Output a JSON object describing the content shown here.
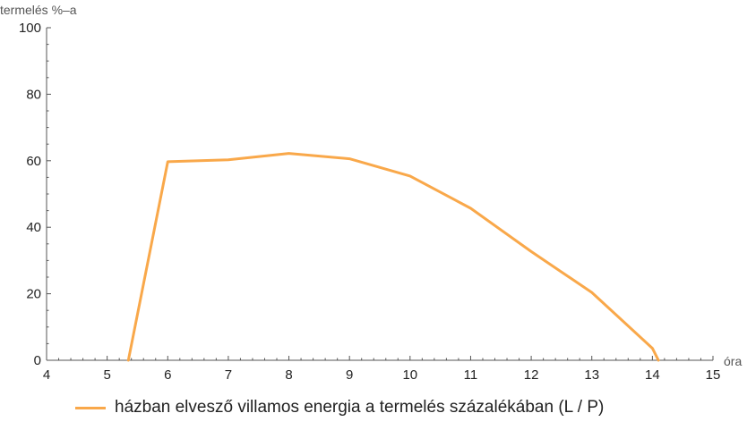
{
  "chart_data": {
    "type": "line",
    "title": "",
    "xlabel": "óra",
    "ylabel": "termelés %–a",
    "xlim": [
      4,
      15
    ],
    "ylim": [
      0,
      100
    ],
    "x_ticks": [
      4,
      5,
      6,
      7,
      8,
      9,
      10,
      11,
      12,
      13,
      14,
      15
    ],
    "y_ticks": [
      0,
      20,
      40,
      60,
      80,
      100
    ],
    "grid": false,
    "legend_position": "bottom",
    "series": [
      {
        "name": "házban elvesző villamos energia a termelés százalékában (L / P)",
        "color": "#f9a84a",
        "x": [
          5.35,
          6,
          7,
          8,
          9,
          10,
          11,
          12,
          13,
          14,
          14.1
        ],
        "y": [
          0,
          59.7,
          60.3,
          62.2,
          60.6,
          55.4,
          45.7,
          32.7,
          20.4,
          3.6,
          0
        ]
      }
    ]
  }
}
